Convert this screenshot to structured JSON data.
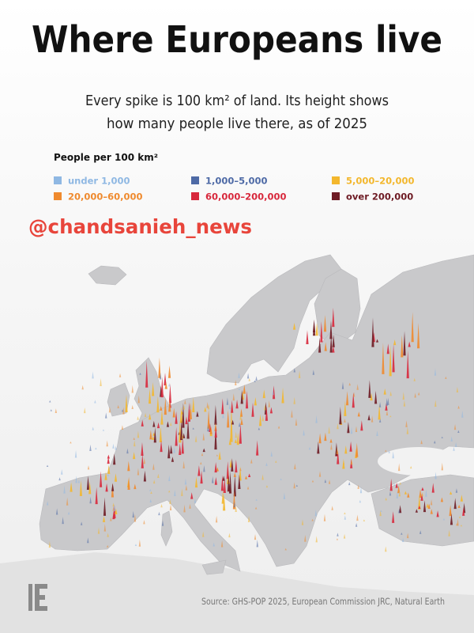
{
  "header": {
    "title": "Where Europeans live",
    "subtitle_lines": [
      "Every spike is 100 km² of land. Its height shows",
      "how many people live there, as of 2025"
    ]
  },
  "legend": {
    "title": "People per 100 km²",
    "items": [
      {
        "label": "under 1,000",
        "color": "#8fb8e3"
      },
      {
        "label": "1,000–5,000",
        "color": "#4e6aa6"
      },
      {
        "label": "5,000–20,000",
        "color": "#f3b72d"
      },
      {
        "label": "20,000–60,000",
        "color": "#ef8a2e"
      },
      {
        "label": "60,000–200,000",
        "color": "#d8283c"
      },
      {
        "label": "over 200,000",
        "color": "#6e1b24"
      }
    ]
  },
  "watermark": "@chandsanieh_news",
  "source": "Source: GHS-POP 2025, European Commission JRC, Natural Earth"
}
